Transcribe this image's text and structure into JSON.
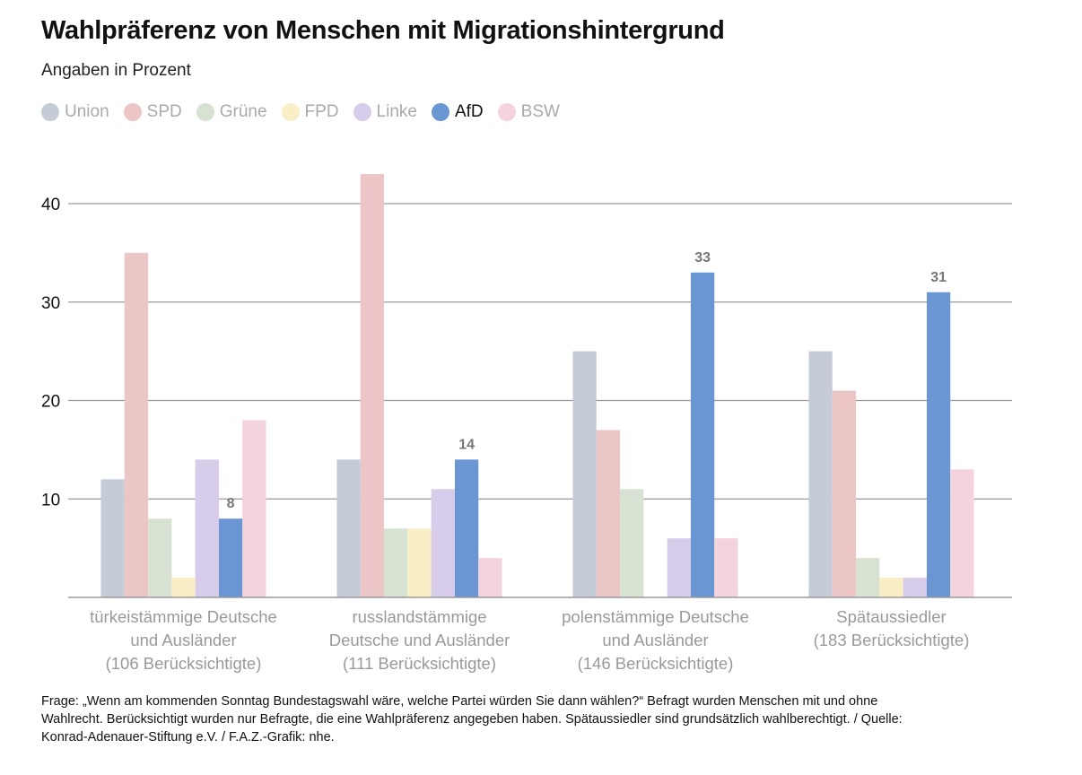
{
  "header": {
    "title": "Wahlpräferenz von Menschen mit Migrationshintergrund",
    "subtitle": "Angaben in Prozent"
  },
  "legend": [
    {
      "name": "Union",
      "color": "#c5ccd8",
      "active": false
    },
    {
      "name": "SPD",
      "color": "#ecc6c6",
      "active": false
    },
    {
      "name": "Grüne",
      "color": "#d8e2d2",
      "active": false
    },
    {
      "name": "FPD",
      "color": "#faeec7",
      "active": false
    },
    {
      "name": "Linke",
      "color": "#d8cceb",
      "active": false
    },
    {
      "name": "AfD",
      "color": "#6b96d4",
      "active": true
    },
    {
      "name": "BSW",
      "color": "#f4d4dc",
      "active": false
    }
  ],
  "chart_data": {
    "type": "bar",
    "title": "Wahlpräferenz von Menschen mit Migrationshintergrund",
    "subtitle": "Angaben in Prozent",
    "xlabel": "",
    "ylabel": "",
    "ylim": [
      0,
      40
    ],
    "yticks": [
      10,
      20,
      30,
      40
    ],
    "grid": true,
    "legend_position": "top-left",
    "categories": [
      [
        "türkeistämmige Deutsche",
        "und Ausländer",
        "(106 Berücksichtigte)"
      ],
      [
        "russlandstämmige",
        "Deutsche und Ausländer",
        "(111 Berücksichtigte)"
      ],
      [
        "polenstämmige Deutsche",
        "und Ausländer",
        "(146 Berücksichtigte)"
      ],
      [
        "Spätaussiedler",
        "(183 Berücksichtigte)"
      ]
    ],
    "series": [
      {
        "name": "Union",
        "values": [
          12,
          14,
          25,
          25
        ]
      },
      {
        "name": "SPD",
        "values": [
          35,
          43,
          17,
          21
        ]
      },
      {
        "name": "Grüne",
        "values": [
          8,
          7,
          11,
          4
        ]
      },
      {
        "name": "FPD",
        "values": [
          2,
          7,
          0,
          2
        ]
      },
      {
        "name": "Linke",
        "values": [
          14,
          11,
          6,
          2
        ]
      },
      {
        "name": "AfD",
        "values": [
          8,
          14,
          33,
          31
        ]
      },
      {
        "name": "BSW",
        "values": [
          18,
          4,
          6,
          13
        ]
      }
    ],
    "data_labels": {
      "series": "AfD",
      "values": [
        "8",
        "14",
        "33",
        "31"
      ]
    }
  },
  "footnote": {
    "lines": [
      "Frage: „Wenn am kommenden Sonntag Bundestagswahl wäre, welche Partei würden Sie dann wählen?“ Befragt  wurden Menschen mit und ohne",
      "Wahlrecht. Berücksichtigt wurden nur Befragte, die eine Wahlpräferenz angegeben  haben. Spätaussiedler sind grundsätzlich wahlberechtigt. / Quelle:",
      "Konrad-Adenauer-Stiftung e.V. / F.A.Z.-Grafik: nhe."
    ]
  }
}
